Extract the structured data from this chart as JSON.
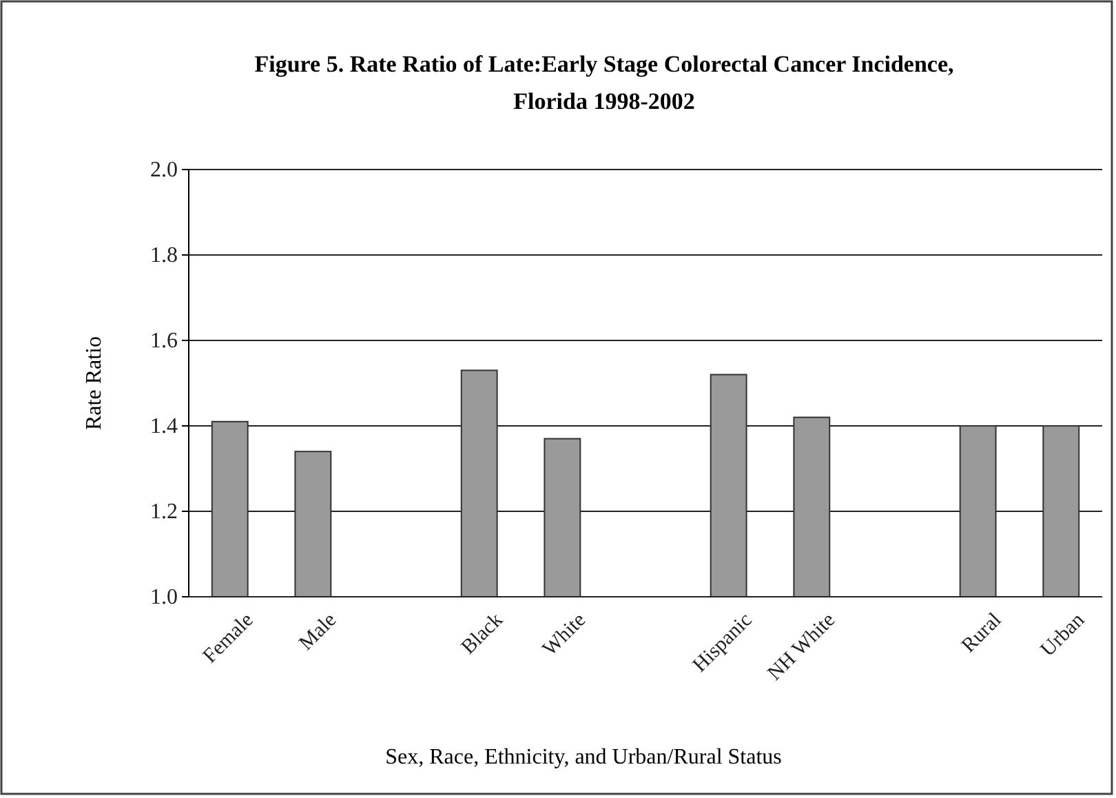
{
  "chart_data": {
    "type": "bar",
    "title": "Figure 5.  Rate Ratio of Late:Early Stage Colorectal Cancer Incidence, Florida 1998-2002",
    "xlabel": "Sex, Race, Ethnicity, and Urban/Rural Status",
    "ylabel": "Rate Ratio",
    "categories": [
      "Female",
      "Male",
      null,
      "Black",
      "White",
      null,
      "Hispanic",
      "NH White",
      null,
      "Rural",
      "Urban"
    ],
    "values": [
      1.41,
      1.34,
      null,
      1.53,
      1.37,
      null,
      1.52,
      1.42,
      null,
      1.4,
      1.4
    ],
    "color": "#9a9a9a",
    "ylim": [
      1.0,
      2.0
    ],
    "yticks": [
      {
        "value": 1.0,
        "label": "1.0"
      },
      1.2,
      1.4,
      1.6,
      1.8,
      {
        "value": 2.0,
        "label": "2.0"
      }
    ],
    "grid": "y"
  }
}
